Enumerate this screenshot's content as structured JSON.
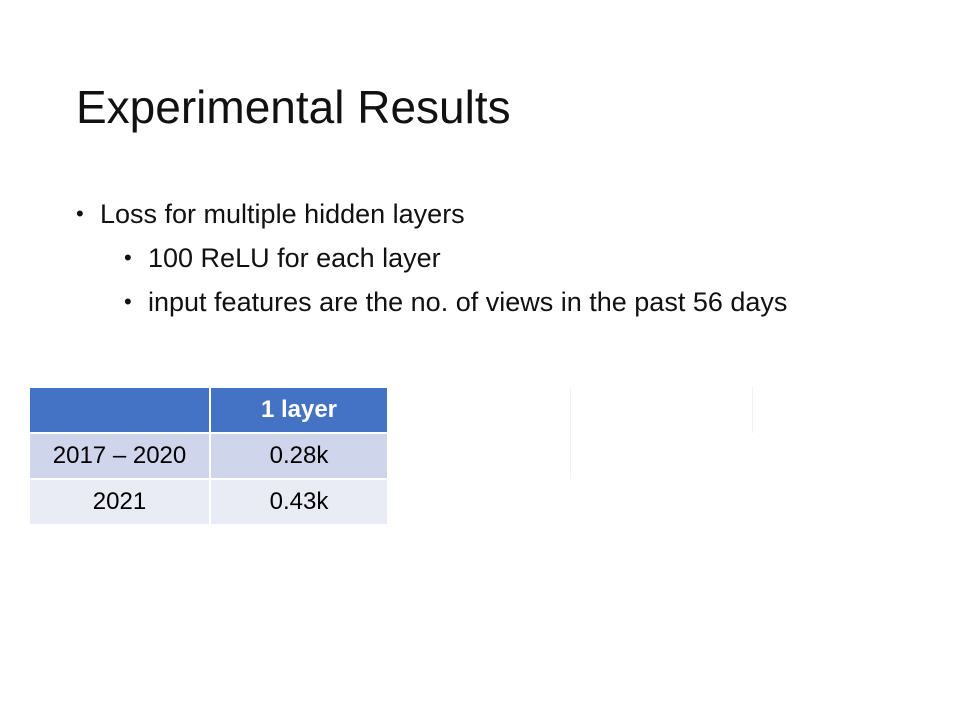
{
  "slide": {
    "title": "Experimental Results",
    "bullets": [
      {
        "level": 1,
        "text": "Loss for multiple hidden layers"
      },
      {
        "level": 2,
        "text": "100 ReLU for each layer"
      },
      {
        "level": 2,
        "text": "input features are the no. of views in the past 56 days"
      }
    ]
  },
  "table": {
    "header": [
      "",
      "1 layer"
    ],
    "rows": [
      [
        "2017 – 2020",
        "0.28k"
      ],
      [
        "2021",
        "0.43k"
      ]
    ]
  },
  "colors": {
    "header_bg": "#4472c4",
    "row_odd_bg": "#cfd5ea",
    "row_even_bg": "#e9ebf5"
  }
}
